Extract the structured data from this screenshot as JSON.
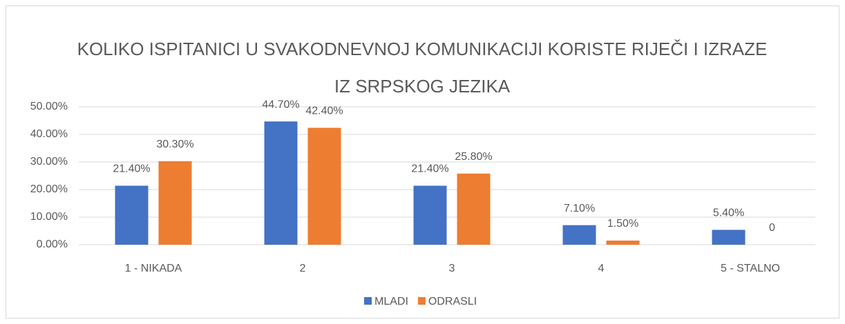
{
  "chart_data": {
    "type": "bar",
    "title": "KOLIKO ISPITANICI U SVAKODNEVNOJ KOMUNIKACIJI KORISTE RIJEČI I IZRAZE IZ SRPSKOG JEZIKA",
    "categories": [
      "1 - NIKADA",
      "2",
      "3",
      "4",
      "5 - STALNO"
    ],
    "series": [
      {
        "name": "MLADI",
        "color": "#4472c4",
        "values": [
          21.4,
          44.7,
          21.4,
          7.1,
          5.4
        ],
        "value_labels": [
          "21.40%",
          "44.70%",
          "21.40%",
          "7.10%",
          "5.40%"
        ]
      },
      {
        "name": "ODRASLI",
        "color": "#ed7d31",
        "values": [
          30.3,
          42.4,
          25.8,
          1.5,
          0
        ],
        "value_labels": [
          "30.30%",
          "42.40%",
          "25.80%",
          "1.50%",
          "0"
        ]
      }
    ],
    "ylim": [
      0,
      50
    ],
    "yticks": [
      {
        "value": 0,
        "label": "0.00%"
      },
      {
        "value": 10,
        "label": "10.00%"
      },
      {
        "value": 20,
        "label": "20.00%"
      },
      {
        "value": 30,
        "label": "30.00%"
      },
      {
        "value": 40,
        "label": "40.00%"
      },
      {
        "value": 50,
        "label": "50.00%"
      }
    ],
    "grid": true,
    "legend": "bottom"
  }
}
